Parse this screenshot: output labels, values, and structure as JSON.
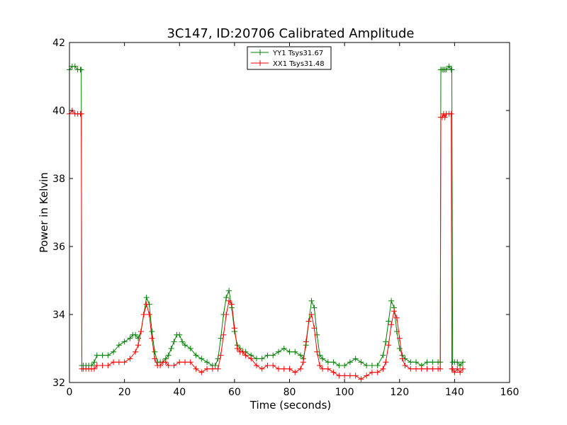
{
  "chart_data": {
    "type": "line",
    "title": "3C147, ID:20706 Calibrated Amplitude",
    "xlabel": "Time (seconds)",
    "ylabel": "Power in Kelvin",
    "xlim": [
      0,
      160
    ],
    "ylim": [
      32,
      42
    ],
    "xticks": [
      0,
      20,
      40,
      60,
      80,
      100,
      120,
      140,
      160
    ],
    "yticks": [
      32,
      34,
      36,
      38,
      40,
      42
    ],
    "grid": false,
    "legend_position": "top-center",
    "series": [
      {
        "name": "YY1 Tsys31.67",
        "color": "#008000",
        "marker": "+",
        "x": [
          0,
          1,
          2,
          3,
          4,
          4.3,
          4.5,
          5,
          6,
          7,
          8,
          9,
          10,
          12,
          14,
          16,
          18,
          20,
          22,
          23,
          24,
          25,
          26,
          27,
          28,
          29,
          30,
          31,
          32,
          33,
          34,
          35,
          36,
          37,
          38,
          39,
          40,
          41,
          42,
          44,
          46,
          48,
          50,
          52,
          53,
          54,
          55,
          56,
          57,
          58,
          59,
          60,
          61,
          62,
          63,
          64,
          66,
          68,
          70,
          72,
          74,
          76,
          78,
          80,
          82,
          84,
          85,
          86,
          87,
          88,
          89,
          90,
          91,
          92,
          94,
          96,
          98,
          100,
          102,
          104,
          106,
          108,
          110,
          112,
          114,
          115,
          116,
          117,
          118,
          119,
          120,
          121,
          122,
          124,
          126,
          128,
          130,
          132,
          134,
          134.8,
          135,
          135.5,
          136,
          136.5,
          137,
          138,
          138.8,
          139,
          139.3,
          140,
          141,
          142,
          143
        ],
        "y": [
          41.2,
          41.3,
          41.3,
          41.2,
          41.2,
          41.2,
          32.5,
          32.5,
          32.5,
          32.5,
          32.5,
          32.6,
          32.8,
          32.8,
          32.8,
          32.9,
          33.1,
          33.2,
          33.3,
          33.4,
          33.4,
          33.3,
          33.5,
          34.0,
          34.5,
          34.3,
          33.5,
          32.9,
          32.6,
          32.6,
          32.6,
          32.7,
          32.8,
          33.0,
          33.2,
          33.4,
          33.4,
          33.2,
          33.1,
          33.0,
          32.8,
          32.7,
          32.6,
          32.5,
          32.5,
          32.7,
          33.3,
          34.0,
          34.5,
          34.7,
          34.2,
          33.5,
          33.1,
          33.0,
          32.9,
          32.9,
          32.8,
          32.7,
          32.7,
          32.8,
          32.8,
          32.9,
          33.0,
          32.9,
          32.9,
          32.8,
          32.7,
          33.1,
          33.8,
          34.4,
          34.2,
          33.4,
          32.8,
          32.7,
          32.6,
          32.6,
          32.5,
          32.5,
          32.6,
          32.7,
          32.6,
          32.5,
          32.5,
          32.5,
          32.8,
          33.2,
          33.8,
          34.4,
          34.2,
          33.5,
          33.0,
          32.8,
          32.7,
          32.6,
          32.6,
          32.5,
          32.6,
          32.6,
          32.6,
          32.6,
          41.2,
          41.2,
          41.2,
          41.2,
          41.2,
          41.3,
          41.2,
          41.2,
          32.6,
          32.6,
          32.6,
          32.5,
          32.6
        ]
      },
      {
        "name": "XX1 Tsys31.48",
        "color": "#ff0000",
        "marker": "+",
        "x": [
          0,
          1,
          2,
          3,
          4,
          4.3,
          4.5,
          5,
          6,
          7,
          8,
          9,
          10,
          12,
          14,
          16,
          18,
          20,
          22,
          24,
          25,
          26,
          27,
          28,
          29,
          30,
          31,
          32,
          33,
          34,
          35,
          36,
          38,
          40,
          42,
          44,
          46,
          48,
          50,
          52,
          54,
          55,
          56,
          57,
          58,
          59,
          60,
          61,
          62,
          63,
          64,
          66,
          68,
          70,
          72,
          74,
          76,
          78,
          80,
          82,
          84,
          85,
          86,
          87,
          88,
          89,
          90,
          91,
          92,
          94,
          96,
          98,
          100,
          102,
          104,
          106,
          108,
          110,
          112,
          114,
          115,
          116,
          117,
          118,
          119,
          120,
          121,
          122,
          124,
          126,
          128,
          130,
          132,
          134,
          134.8,
          135,
          135.5,
          136,
          136.5,
          137,
          138,
          138.8,
          139,
          139.3,
          140,
          141,
          142,
          143
        ],
        "y": [
          39.9,
          40.0,
          39.9,
          39.9,
          39.9,
          39.9,
          32.4,
          32.4,
          32.4,
          32.4,
          32.4,
          32.4,
          32.5,
          32.5,
          32.5,
          32.6,
          32.6,
          32.6,
          32.7,
          32.9,
          33.1,
          33.5,
          34.0,
          34.3,
          34.0,
          33.3,
          32.7,
          32.5,
          32.5,
          32.6,
          32.6,
          32.5,
          32.5,
          32.6,
          32.6,
          32.6,
          32.4,
          32.3,
          32.4,
          32.4,
          32.4,
          32.8,
          33.4,
          34.0,
          34.4,
          34.3,
          33.6,
          33.0,
          32.9,
          32.9,
          32.8,
          32.7,
          32.5,
          32.4,
          32.5,
          32.5,
          32.4,
          32.4,
          32.4,
          32.3,
          32.4,
          32.6,
          33.2,
          33.8,
          34.0,
          33.6,
          32.9,
          32.5,
          32.4,
          32.4,
          32.3,
          32.2,
          32.2,
          32.2,
          32.2,
          32.1,
          32.2,
          32.3,
          32.3,
          32.4,
          32.6,
          33.1,
          33.7,
          34.1,
          33.9,
          33.3,
          32.7,
          32.5,
          32.4,
          32.4,
          32.4,
          32.4,
          32.4,
          32.4,
          32.4,
          39.8,
          39.8,
          39.9,
          39.8,
          39.9,
          39.9,
          39.9,
          32.4,
          32.4,
          32.3,
          32.4,
          32.3,
          32.4
        ]
      }
    ]
  }
}
